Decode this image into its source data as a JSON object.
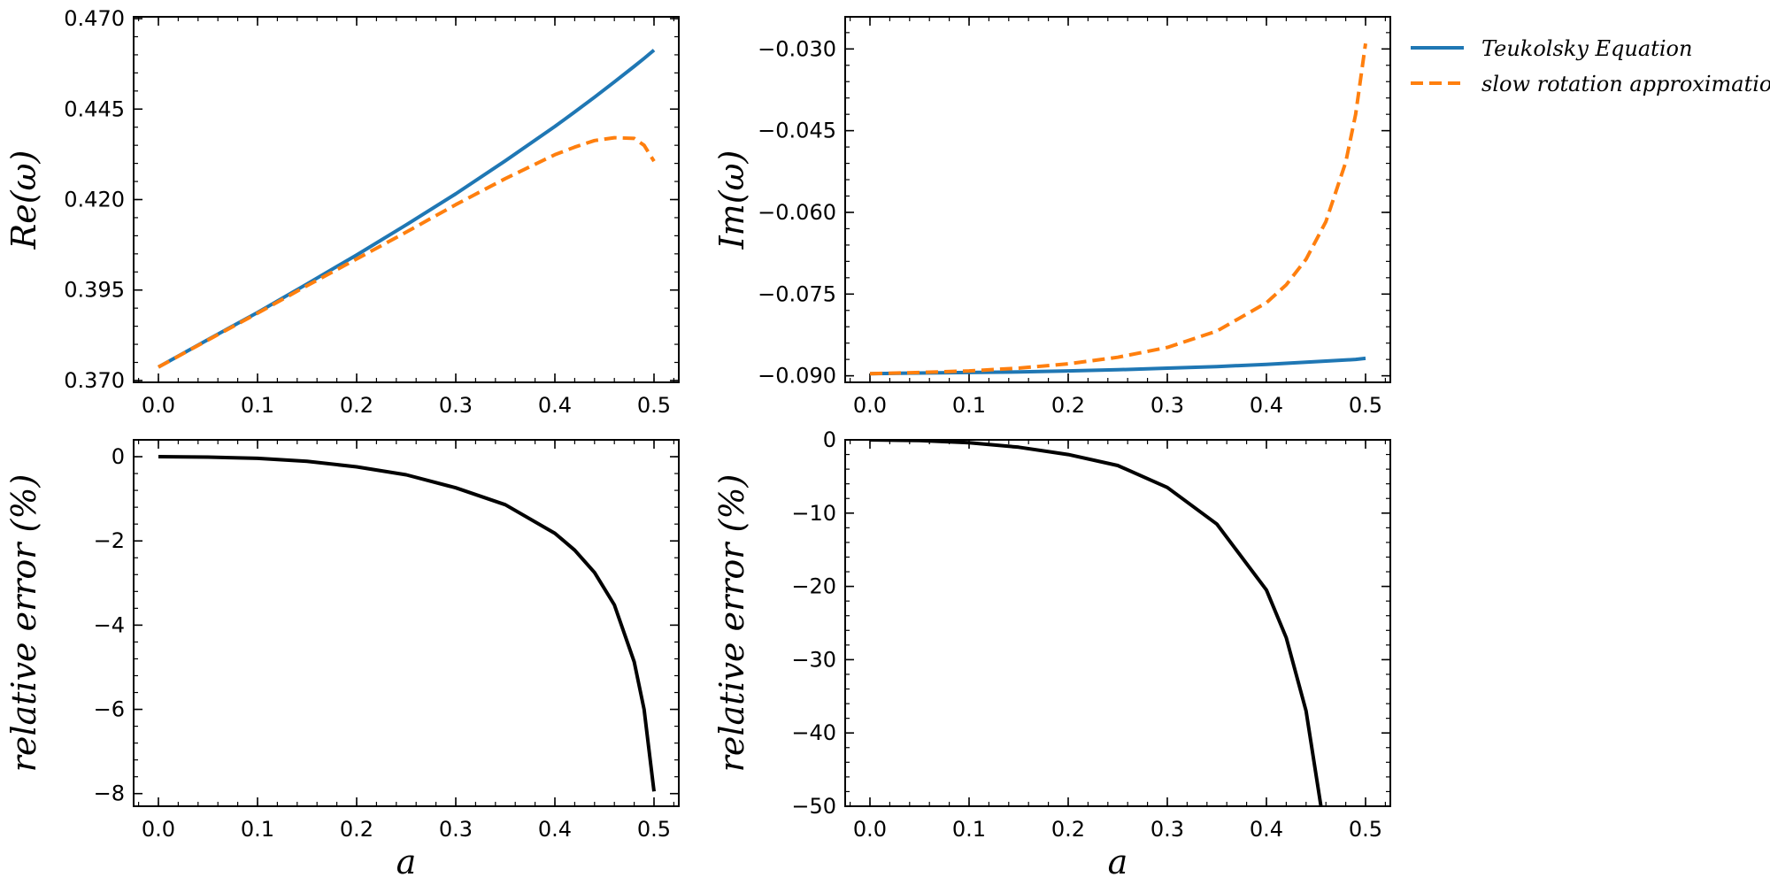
{
  "colors": {
    "teukolsky": "#1f77b4",
    "slow_rotation": "#ff7f0e",
    "error": "#000000"
  },
  "legend": [
    {
      "label": "Teukolsky Equation",
      "style": "solid",
      "color": "#1f77b4"
    },
    {
      "label": "slow rotation approximation",
      "style": "dashed",
      "color": "#ff7f0e"
    }
  ],
  "chart_data": [
    {
      "id": "re",
      "type": "line",
      "title": "",
      "xlabel": "",
      "ylabel": "Re(ω)",
      "xlim": [
        -0.025,
        0.525
      ],
      "ylim": [
        0.3695,
        0.4705
      ],
      "xticks": [
        0.0,
        0.1,
        0.2,
        0.3,
        0.4,
        0.5
      ],
      "xtick_labels": [
        "0.0",
        "0.1",
        "0.2",
        "0.3",
        "0.4",
        "0.5"
      ],
      "yticks": [
        0.37,
        0.395,
        0.42,
        0.445,
        0.47
      ],
      "ytick_labels": [
        "0.370",
        "0.395",
        "0.420",
        "0.445",
        "0.470"
      ],
      "x": [
        0.0,
        0.05,
        0.1,
        0.15,
        0.2,
        0.25,
        0.3,
        0.35,
        0.4,
        0.42,
        0.44,
        0.46,
        0.48,
        0.49,
        0.5
      ],
      "series": [
        {
          "name": "Teukolsky Equation",
          "style": "solid",
          "color": "#1f77b4",
          "values": [
            0.3737,
            0.3813,
            0.3888,
            0.3967,
            0.4047,
            0.413,
            0.4216,
            0.4307,
            0.4402,
            0.4442,
            0.4483,
            0.4525,
            0.4568,
            0.459,
            0.4613
          ]
        },
        {
          "name": "slow rotation approximation",
          "style": "dashed",
          "color": "#ff7f0e",
          "values": [
            0.3737,
            0.3812,
            0.3886,
            0.3962,
            0.4036,
            0.411,
            0.4186,
            0.4258,
            0.4324,
            0.4345,
            0.4363,
            0.4371,
            0.4369,
            0.435,
            0.4306
          ]
        }
      ]
    },
    {
      "id": "im",
      "type": "line",
      "title": "",
      "xlabel": "",
      "ylabel": "Im(ω)",
      "xlim": [
        -0.025,
        0.525
      ],
      "ylim": [
        -0.0912,
        -0.0241
      ],
      "xticks": [
        0.0,
        0.1,
        0.2,
        0.3,
        0.4,
        0.5
      ],
      "xtick_labels": [
        "0.0",
        "0.1",
        "0.2",
        "0.3",
        "0.4",
        "0.5"
      ],
      "yticks": [
        -0.09,
        -0.075,
        -0.06,
        -0.045,
        -0.03
      ],
      "ytick_labels": [
        "−0.090",
        "−0.075",
        "−0.060",
        "−0.045",
        "−0.030"
      ],
      "x": [
        0.0,
        0.05,
        0.1,
        0.15,
        0.2,
        0.25,
        0.3,
        0.35,
        0.4,
        0.42,
        0.44,
        0.46,
        0.48,
        0.49,
        0.5
      ],
      "series": [
        {
          "name": "Teukolsky Equation",
          "style": "solid",
          "color": "#1f77b4",
          "values": [
            -0.0896,
            -0.0895,
            -0.0894,
            -0.0893,
            -0.0891,
            -0.0889,
            -0.0886,
            -0.0883,
            -0.0879,
            -0.0877,
            -0.0875,
            -0.0873,
            -0.0871,
            -0.087,
            -0.0868
          ]
        },
        {
          "name": "slow rotation approximation",
          "style": "dashed",
          "color": "#ff7f0e",
          "values": [
            -0.0896,
            -0.0894,
            -0.0891,
            -0.0886,
            -0.0878,
            -0.0866,
            -0.0848,
            -0.0818,
            -0.0766,
            -0.0733,
            -0.0686,
            -0.0617,
            -0.0508,
            -0.042,
            -0.029
          ]
        }
      ]
    },
    {
      "id": "re_err",
      "type": "line",
      "title": "",
      "xlabel": "a",
      "ylabel": "relative error (%)",
      "xlim": [
        -0.025,
        0.525
      ],
      "ylim": [
        -8.3,
        0.4
      ],
      "xticks": [
        0.0,
        0.1,
        0.2,
        0.3,
        0.4,
        0.5
      ],
      "xtick_labels": [
        "0.0",
        "0.1",
        "0.2",
        "0.3",
        "0.4",
        "0.5"
      ],
      "yticks": [
        -8,
        -6,
        -4,
        -2,
        0
      ],
      "ytick_labels": [
        "−8",
        "−6",
        "−4",
        "−2",
        "0"
      ],
      "x": [
        0.0,
        0.05,
        0.1,
        0.15,
        0.2,
        0.25,
        0.3,
        0.35,
        0.4,
        0.42,
        0.44,
        0.46,
        0.48,
        0.49,
        0.5
      ],
      "series": [
        {
          "name": "relative error",
          "style": "solid",
          "color": "#000000",
          "values": [
            0.0,
            -0.01,
            -0.04,
            -0.11,
            -0.24,
            -0.43,
            -0.74,
            -1.14,
            -1.82,
            -2.22,
            -2.75,
            -3.52,
            -4.87,
            -6.0,
            -7.95
          ]
        }
      ]
    },
    {
      "id": "im_err",
      "type": "line",
      "title": "",
      "xlabel": "a",
      "ylabel": "relative error (%)",
      "xlim": [
        -0.025,
        0.525
      ],
      "ylim": [
        -50,
        0
      ],
      "xticks": [
        0.0,
        0.1,
        0.2,
        0.3,
        0.4,
        0.5
      ],
      "xtick_labels": [
        "0.0",
        "0.1",
        "0.2",
        "0.3",
        "0.4",
        "0.5"
      ],
      "yticks": [
        -50,
        -40,
        -30,
        -20,
        -10,
        0
      ],
      "ytick_labels": [
        "−50",
        "−40",
        "−30",
        "−20",
        "−10",
        "0"
      ],
      "x": [
        0.0,
        0.05,
        0.1,
        0.15,
        0.2,
        0.25,
        0.3,
        0.35,
        0.4,
        0.42,
        0.44,
        0.455
      ],
      "series": [
        {
          "name": "relative error",
          "style": "solid",
          "color": "#000000",
          "values": [
            0.0,
            -0.1,
            -0.4,
            -1.0,
            -2.0,
            -3.5,
            -6.5,
            -11.5,
            -20.5,
            -27.0,
            -37.0,
            -50.0
          ]
        }
      ]
    }
  ]
}
